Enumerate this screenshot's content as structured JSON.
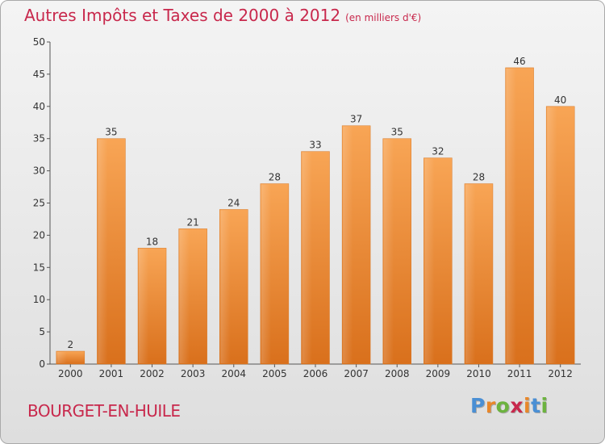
{
  "title": "Autres Impôts et Taxes de 2000 à 2012",
  "unit": "(en milliers d'€)",
  "commune": "BOURGET-EN-HUILE",
  "logo": {
    "text": "Proxiti",
    "colors": [
      "#4a8fd4",
      "#e8872a",
      "#6cb33f",
      "#c8284c",
      "#e8872a",
      "#4a8fd4",
      "#6cb33f"
    ]
  },
  "colors": {
    "bar": "#f0933a",
    "title": "#c8284c"
  },
  "chart_data": {
    "type": "bar",
    "categories": [
      "2000",
      "2001",
      "2002",
      "2003",
      "2004",
      "2005",
      "2006",
      "2007",
      "2008",
      "2009",
      "2010",
      "2011",
      "2012"
    ],
    "values": [
      2,
      35,
      18,
      21,
      24,
      28,
      33,
      37,
      35,
      32,
      28,
      46,
      40
    ],
    "ylim": [
      0,
      50
    ],
    "yticks": [
      0,
      5,
      10,
      15,
      20,
      25,
      30,
      35,
      40,
      45,
      50
    ],
    "grid": false,
    "data_labels": true
  }
}
